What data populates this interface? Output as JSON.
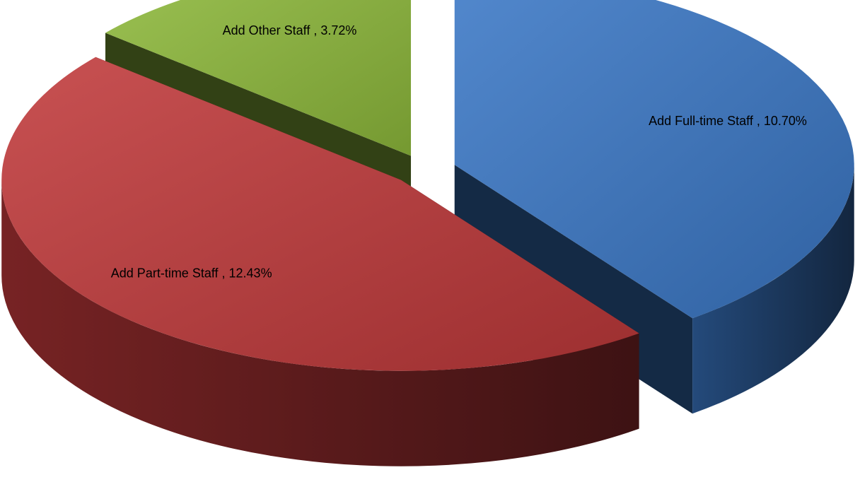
{
  "chart_data": {
    "type": "pie3d",
    "values": [
      10.7,
      12.43,
      3.72
    ],
    "value_labels": [
      "Add Full-time Staff , 10.70%",
      "Add Part-time Staff , 12.43%",
      "Add Other Staff , 3.72%"
    ],
    "colors": [
      "#3a78c6",
      "#c0393a",
      "#8fba3c"
    ]
  }
}
